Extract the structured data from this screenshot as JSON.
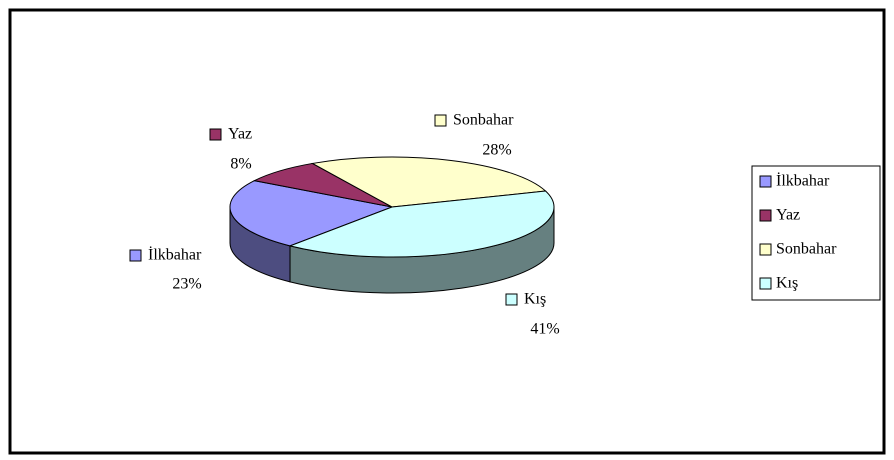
{
  "chart_data": {
    "type": "pie",
    "categories": [
      "İlkbahar",
      "Yaz",
      "Sonbahar",
      "Kış"
    ],
    "values": [
      23,
      8,
      28,
      41
    ],
    "value_labels": [
      "23%",
      "8%",
      "28%",
      "41%"
    ],
    "colors": [
      "#9999ff",
      "#993366",
      "#ffffcc",
      "#ccffff"
    ],
    "three_d": true,
    "legend": "right"
  }
}
